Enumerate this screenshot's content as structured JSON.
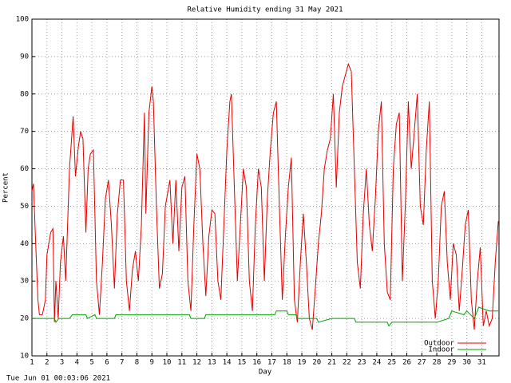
{
  "chart_data": {
    "type": "line",
    "title": "Relative Humidity ending 31 May 2021",
    "xlabel": "Day",
    "ylabel": "Percent",
    "footer": "Tue Jun 01 00:03:06 2021",
    "xlim": [
      1,
      32.15
    ],
    "ylim": [
      10,
      100
    ],
    "xticks": [
      1,
      2,
      3,
      4,
      5,
      6,
      7,
      8,
      9,
      10,
      11,
      12,
      13,
      14,
      15,
      16,
      17,
      18,
      19,
      20,
      21,
      22,
      23,
      24,
      25,
      26,
      27,
      28,
      29,
      30,
      31
    ],
    "yticks": [
      10,
      20,
      30,
      40,
      50,
      60,
      70,
      80,
      90,
      100
    ],
    "grid": true,
    "legend": "lower right",
    "series": [
      {
        "name": "Outdoor",
        "color": "#e00000",
        "x": [
          1.0,
          1.1,
          1.25,
          1.4,
          1.5,
          1.7,
          1.9,
          2.0,
          2.25,
          2.4,
          2.5,
          2.6,
          2.75,
          2.9,
          3.1,
          3.25,
          3.5,
          3.75,
          3.9,
          4.1,
          4.25,
          4.4,
          4.6,
          4.75,
          4.9,
          5.1,
          5.3,
          5.5,
          5.7,
          5.9,
          6.1,
          6.3,
          6.5,
          6.7,
          6.9,
          7.1,
          7.3,
          7.5,
          7.7,
          7.9,
          8.1,
          8.3,
          8.5,
          8.6,
          8.8,
          9.0,
          9.1,
          9.3,
          9.5,
          9.7,
          9.9,
          10.2,
          10.4,
          10.6,
          10.8,
          11.0,
          11.2,
          11.4,
          11.6,
          11.8,
          12.0,
          12.2,
          12.4,
          12.6,
          12.8,
          13.0,
          13.2,
          13.4,
          13.6,
          13.8,
          14.0,
          14.2,
          14.3,
          14.5,
          14.7,
          14.9,
          15.1,
          15.3,
          15.5,
          15.7,
          15.9,
          16.1,
          16.3,
          16.5,
          16.7,
          16.9,
          17.1,
          17.3,
          17.5,
          17.7,
          17.9,
          18.1,
          18.3,
          18.5,
          18.7,
          18.9,
          19.1,
          19.3,
          19.5,
          19.7,
          19.9,
          20.1,
          20.3,
          20.5,
          20.7,
          20.9,
          21.1,
          21.3,
          21.5,
          21.7,
          21.9,
          22.1,
          22.3,
          22.5,
          22.7,
          22.9,
          23.1,
          23.3,
          23.5,
          23.7,
          23.9,
          24.1,
          24.3,
          24.5,
          24.7,
          24.9,
          25.1,
          25.3,
          25.5,
          25.7,
          25.9,
          26.1,
          26.3,
          26.5,
          26.7,
          26.9,
          27.1,
          27.3,
          27.5,
          27.7,
          27.9,
          28.1,
          28.3,
          28.5,
          28.7,
          28.9,
          29.1,
          29.3,
          29.5,
          29.7,
          29.9,
          30.1,
          30.3,
          30.5,
          30.7,
          30.9,
          31.1,
          31.3,
          31.5,
          31.7,
          31.9,
          32.1
        ],
        "values": [
          54,
          56,
          40,
          25,
          21,
          21,
          25,
          37,
          43,
          44,
          19,
          30,
          20,
          35,
          42,
          30,
          60,
          74,
          58,
          66,
          70,
          68,
          43,
          60,
          64,
          65,
          30,
          21,
          35,
          52,
          57,
          45,
          28,
          48,
          57,
          57,
          30,
          22,
          33,
          38,
          30,
          45,
          75,
          48,
          75,
          82,
          78,
          50,
          28,
          32,
          50,
          57,
          40,
          57,
          38,
          55,
          58,
          30,
          22,
          45,
          64,
          60,
          40,
          26,
          42,
          49,
          48,
          30,
          25,
          45,
          65,
          78,
          80,
          55,
          30,
          45,
          60,
          55,
          30,
          22,
          45,
          60,
          55,
          30,
          52,
          65,
          75,
          78,
          50,
          25,
          42,
          55,
          63,
          25,
          19,
          35,
          48,
          35,
          20,
          17,
          28,
          40,
          48,
          60,
          65,
          68,
          80,
          55,
          75,
          82,
          85,
          88,
          86,
          60,
          35,
          28,
          48,
          60,
          45,
          38,
          52,
          70,
          78,
          40,
          27,
          25,
          60,
          72,
          75,
          30,
          50,
          78,
          60,
          70,
          80,
          50,
          45,
          65,
          78,
          30,
          20,
          30,
          50,
          54,
          35,
          25,
          40,
          37,
          22,
          33,
          45,
          49,
          25,
          17,
          30,
          39,
          18,
          22,
          18,
          20,
          35,
          46
        ]
      },
      {
        "name": "Indoor",
        "color": "#00a000",
        "x": [
          1,
          2.5,
          2.6,
          2.8,
          3.0,
          3.5,
          3.7,
          4.6,
          4.7,
          5.2,
          5.3,
          6.5,
          6.6,
          10.0,
          10.1,
          11.5,
          11.6,
          12.5,
          12.6,
          13.0,
          17.2,
          17.3,
          18.0,
          18.1,
          18.6,
          18.7,
          20.0,
          20.1,
          21.0,
          22.5,
          22.6,
          24.7,
          24.8,
          25.0,
          27.3,
          28.0,
          28.8,
          29.0,
          29.8,
          30.0,
          30.5,
          30.8,
          31.5,
          32.1
        ],
        "values": [
          20,
          20,
          19,
          20,
          20,
          20,
          21,
          21,
          20,
          21,
          20,
          20,
          21,
          21,
          21,
          21,
          20,
          20,
          21,
          21,
          21,
          22,
          22,
          21,
          21,
          20,
          20,
          19,
          20,
          20,
          19,
          19,
          18,
          19,
          19,
          19,
          20,
          22,
          21,
          22,
          20,
          23,
          22,
          22
        ]
      }
    ]
  }
}
